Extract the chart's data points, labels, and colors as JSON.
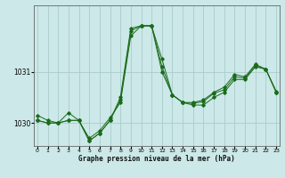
{
  "xlabel": "Graphe pression niveau de la mer (hPa)",
  "bg_color": "#cce8e8",
  "grid_color": "#aacccc",
  "line_color": "#1a6b1a",
  "ylim": [
    1029.55,
    1032.3
  ],
  "xlim": [
    -0.3,
    23.3
  ],
  "yticks": [
    1030,
    1031
  ],
  "xticks": [
    0,
    1,
    2,
    3,
    4,
    5,
    6,
    7,
    8,
    9,
    10,
    11,
    12,
    13,
    14,
    15,
    16,
    17,
    18,
    19,
    20,
    21,
    22,
    23
  ],
  "series": [
    [
      1030.15,
      1030.05,
      1030.0,
      1030.2,
      1030.05,
      1029.7,
      1029.85,
      1030.1,
      1030.4,
      1031.7,
      1031.9,
      1031.9,
      1031.25,
      1030.55,
      1030.4,
      1030.35,
      1030.35,
      1030.5,
      1030.6,
      1030.85,
      1030.85,
      1031.1,
      1031.05,
      1030.6
    ],
    [
      1030.05,
      1030.0,
      1030.0,
      1030.05,
      1030.05,
      1029.65,
      1029.8,
      1030.05,
      1030.5,
      1031.85,
      1031.9,
      1031.9,
      1031.0,
      1030.55,
      1030.4,
      1030.4,
      1030.45,
      1030.6,
      1030.7,
      1030.95,
      1030.9,
      1031.15,
      1031.05,
      1030.6
    ],
    [
      1030.05,
      1030.0,
      1030.0,
      1030.05,
      1030.05,
      1029.65,
      1029.8,
      1030.05,
      1030.45,
      1031.8,
      1031.9,
      1031.9,
      1031.1,
      1030.55,
      1030.4,
      1030.38,
      1030.42,
      1030.58,
      1030.65,
      1030.9,
      1030.88,
      1031.12,
      1031.05,
      1030.62
    ]
  ]
}
